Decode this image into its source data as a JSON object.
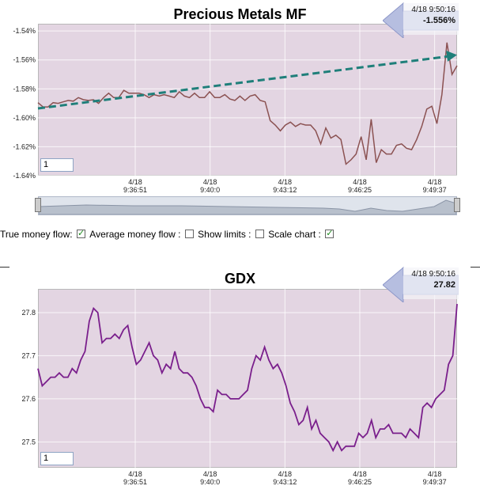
{
  "top_chart": {
    "title": "Precious Metals MF",
    "callout_time": "4/18 9:50:16",
    "callout_value": "-1.556%",
    "zoom_value": "1"
  },
  "bottom_chart": {
    "title": "GDX",
    "callout_time": "4/18 9:50:16",
    "callout_value": "27.82",
    "zoom_value": "1"
  },
  "controls": {
    "true_money_flow": "True money flow:",
    "true_money_flow_checked": true,
    "average_money_flow": "Average money flow :",
    "average_money_flow_checked": true,
    "show_limits": "Show limits :",
    "show_limits_checked": false,
    "scale_chart": "Scale chart :",
    "scale_chart_checked": true
  },
  "colors": {
    "plot_fill": "#e3d5e2",
    "mf_line": "#8b5252",
    "gdx_line": "#7a1f8c",
    "trend_arrow": "#1f7f7a",
    "callout": "#b6bee0"
  },
  "chart_data": [
    {
      "type": "line",
      "title": "Precious Metals MF",
      "x_tick_labels": [
        [
          "4/18",
          "9:36:51"
        ],
        [
          "4/18",
          "9:40:0"
        ],
        [
          "4/18",
          "9:43:12"
        ],
        [
          "4/18",
          "9:46:25"
        ],
        [
          "4/18",
          "9:49:37"
        ]
      ],
      "x_tick_positions": [
        13,
        23,
        33,
        43,
        53
      ],
      "y_tick_labels": [
        "-1.54%",
        "-1.56%",
        "-1.58%",
        "-1.60%",
        "-1.62%",
        "-1.64%"
      ],
      "y_tick_values": [
        -1.54,
        -1.56,
        -1.58,
        -1.6,
        -1.62,
        -1.64
      ],
      "ylim": [
        -1.64,
        -1.535
      ],
      "xlim": [
        0,
        56
      ],
      "grid": true,
      "series": [
        {
          "values": [
            -1.5895,
            -1.5925,
            -1.5925,
            -1.5895,
            -1.59,
            -1.589,
            -1.588,
            -1.5885,
            -1.586,
            -1.5875,
            -1.588,
            -1.5875,
            -1.59,
            -1.586,
            -1.583,
            -1.586,
            -1.586,
            -1.581,
            -1.583,
            -1.583,
            -1.583,
            -1.584,
            -1.586,
            -1.584,
            -1.585,
            -1.584,
            -1.585,
            -1.586,
            -1.582,
            -1.585,
            -1.586,
            -1.583,
            -1.586,
            -1.586,
            -1.582,
            -1.586,
            -1.586,
            -1.584,
            -1.587,
            -1.588,
            -1.585,
            -1.588,
            -1.585,
            -1.584,
            -1.588,
            -1.589,
            -1.602,
            -1.605,
            -1.609,
            -1.605,
            -1.603,
            -1.606,
            -1.604,
            -1.605,
            -1.605,
            -1.609,
            -1.618,
            -1.607,
            -1.614,
            -1.612,
            -1.615,
            -1.632,
            -1.629,
            -1.625,
            -1.613,
            -1.629,
            -1.601,
            -1.631,
            -1.622,
            -1.625,
            -1.625,
            -1.619,
            -1.618,
            -1.621,
            -1.622,
            -1.615,
            -1.606,
            -1.594,
            -1.592,
            -1.604,
            -1.584,
            -1.548,
            -1.57,
            -1.564
          ]
        },
        {
          "name": "",
          "values": [
            -1.5935,
            -1.5565
          ]
        }
      ]
    },
    {
      "type": "line",
      "title": "GDX",
      "x_tick_labels": [
        [
          "4/18",
          "9:36:51"
        ],
        [
          "4/18",
          "9:40:0"
        ],
        [
          "4/18",
          "9:43:12"
        ],
        [
          "4/18",
          "9:46:25"
        ],
        [
          "4/18",
          "9:49:37"
        ]
      ],
      "x_tick_positions": [
        13,
        23,
        33,
        43,
        53
      ],
      "y_tick_labels": [
        "27.8",
        "27.7",
        "27.6",
        "27.5"
      ],
      "y_tick_values": [
        27.8,
        27.7,
        27.6,
        27.5
      ],
      "ylim": [
        27.44,
        27.855
      ],
      "xlim": [
        0,
        56
      ],
      "grid": true,
      "series": [
        {
          "values": [
            27.67,
            27.63,
            27.64,
            27.65,
            27.65,
            27.66,
            27.65,
            27.65,
            27.67,
            27.66,
            27.69,
            27.71,
            27.78,
            27.81,
            27.8,
            27.73,
            27.74,
            27.74,
            27.75,
            27.74,
            27.76,
            27.77,
            27.72,
            27.68,
            27.69,
            27.71,
            27.73,
            27.7,
            27.69,
            27.66,
            27.68,
            27.67,
            27.71,
            27.67,
            27.66,
            27.66,
            27.65,
            27.63,
            27.6,
            27.58,
            27.58,
            27.57,
            27.62,
            27.61,
            27.61,
            27.6,
            27.6,
            27.6,
            27.61,
            27.62,
            27.67,
            27.7,
            27.69,
            27.72,
            27.69,
            27.67,
            27.68,
            27.66,
            27.63,
            27.59,
            27.57,
            27.54,
            27.55,
            27.58,
            27.53,
            27.55,
            27.52,
            27.51,
            27.5,
            27.48,
            27.5,
            27.48,
            27.49,
            27.49,
            27.49,
            27.52,
            27.51,
            27.52,
            27.55,
            27.51,
            27.53,
            27.53,
            27.54,
            27.52,
            27.52,
            27.52,
            27.51,
            27.53,
            27.52,
            27.51,
            27.58,
            27.59,
            27.58,
            27.6,
            27.61,
            27.62,
            27.68,
            27.7,
            27.82
          ]
        }
      ]
    }
  ]
}
